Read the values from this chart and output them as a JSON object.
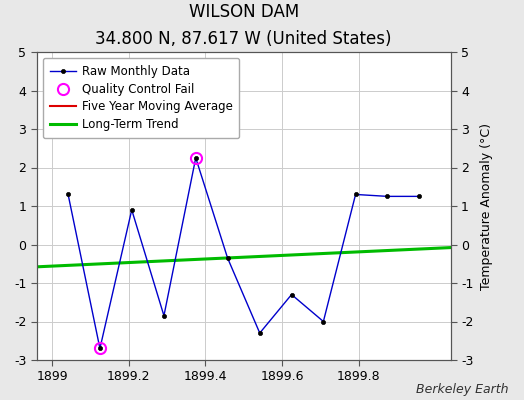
{
  "title": "WILSON DAM",
  "subtitle": "34.800 N, 87.617 W (United States)",
  "ylabel": "Temperature Anomaly (°C)",
  "credit": "Berkeley Earth",
  "xlim": [
    1898.96,
    1900.04
  ],
  "ylim": [
    -3,
    5
  ],
  "yticks": [
    -3,
    -2,
    -1,
    0,
    1,
    2,
    3,
    4,
    5
  ],
  "xticks": [
    1899,
    1899.2,
    1899.4,
    1899.6,
    1899.8
  ],
  "background_color": "#e8e8e8",
  "plot_background_color": "#ffffff",
  "raw_x": [
    1899.042,
    1899.125,
    1899.208,
    1899.292,
    1899.375,
    1899.458,
    1899.542,
    1899.625,
    1899.708,
    1899.792,
    1899.875,
    1899.958
  ],
  "raw_y": [
    1.3,
    -2.7,
    0.9,
    -1.85,
    2.25,
    -0.35,
    -2.3,
    -1.3,
    -2.0,
    1.3,
    1.25,
    1.25
  ],
  "qc_fail_indices": [
    1,
    4
  ],
  "trend_x": [
    1898.96,
    1900.04
  ],
  "trend_y": [
    -0.58,
    -0.08
  ],
  "raw_color": "#0000cc",
  "raw_marker_color": "#000000",
  "qc_color": "#ff00ff",
  "trend_color": "#00bb00",
  "moving_avg_color": "#dd0000",
  "grid_color": "#cccccc",
  "title_fontsize": 12,
  "subtitle_fontsize": 10,
  "tick_fontsize": 9,
  "legend_fontsize": 8.5,
  "credit_fontsize": 9
}
